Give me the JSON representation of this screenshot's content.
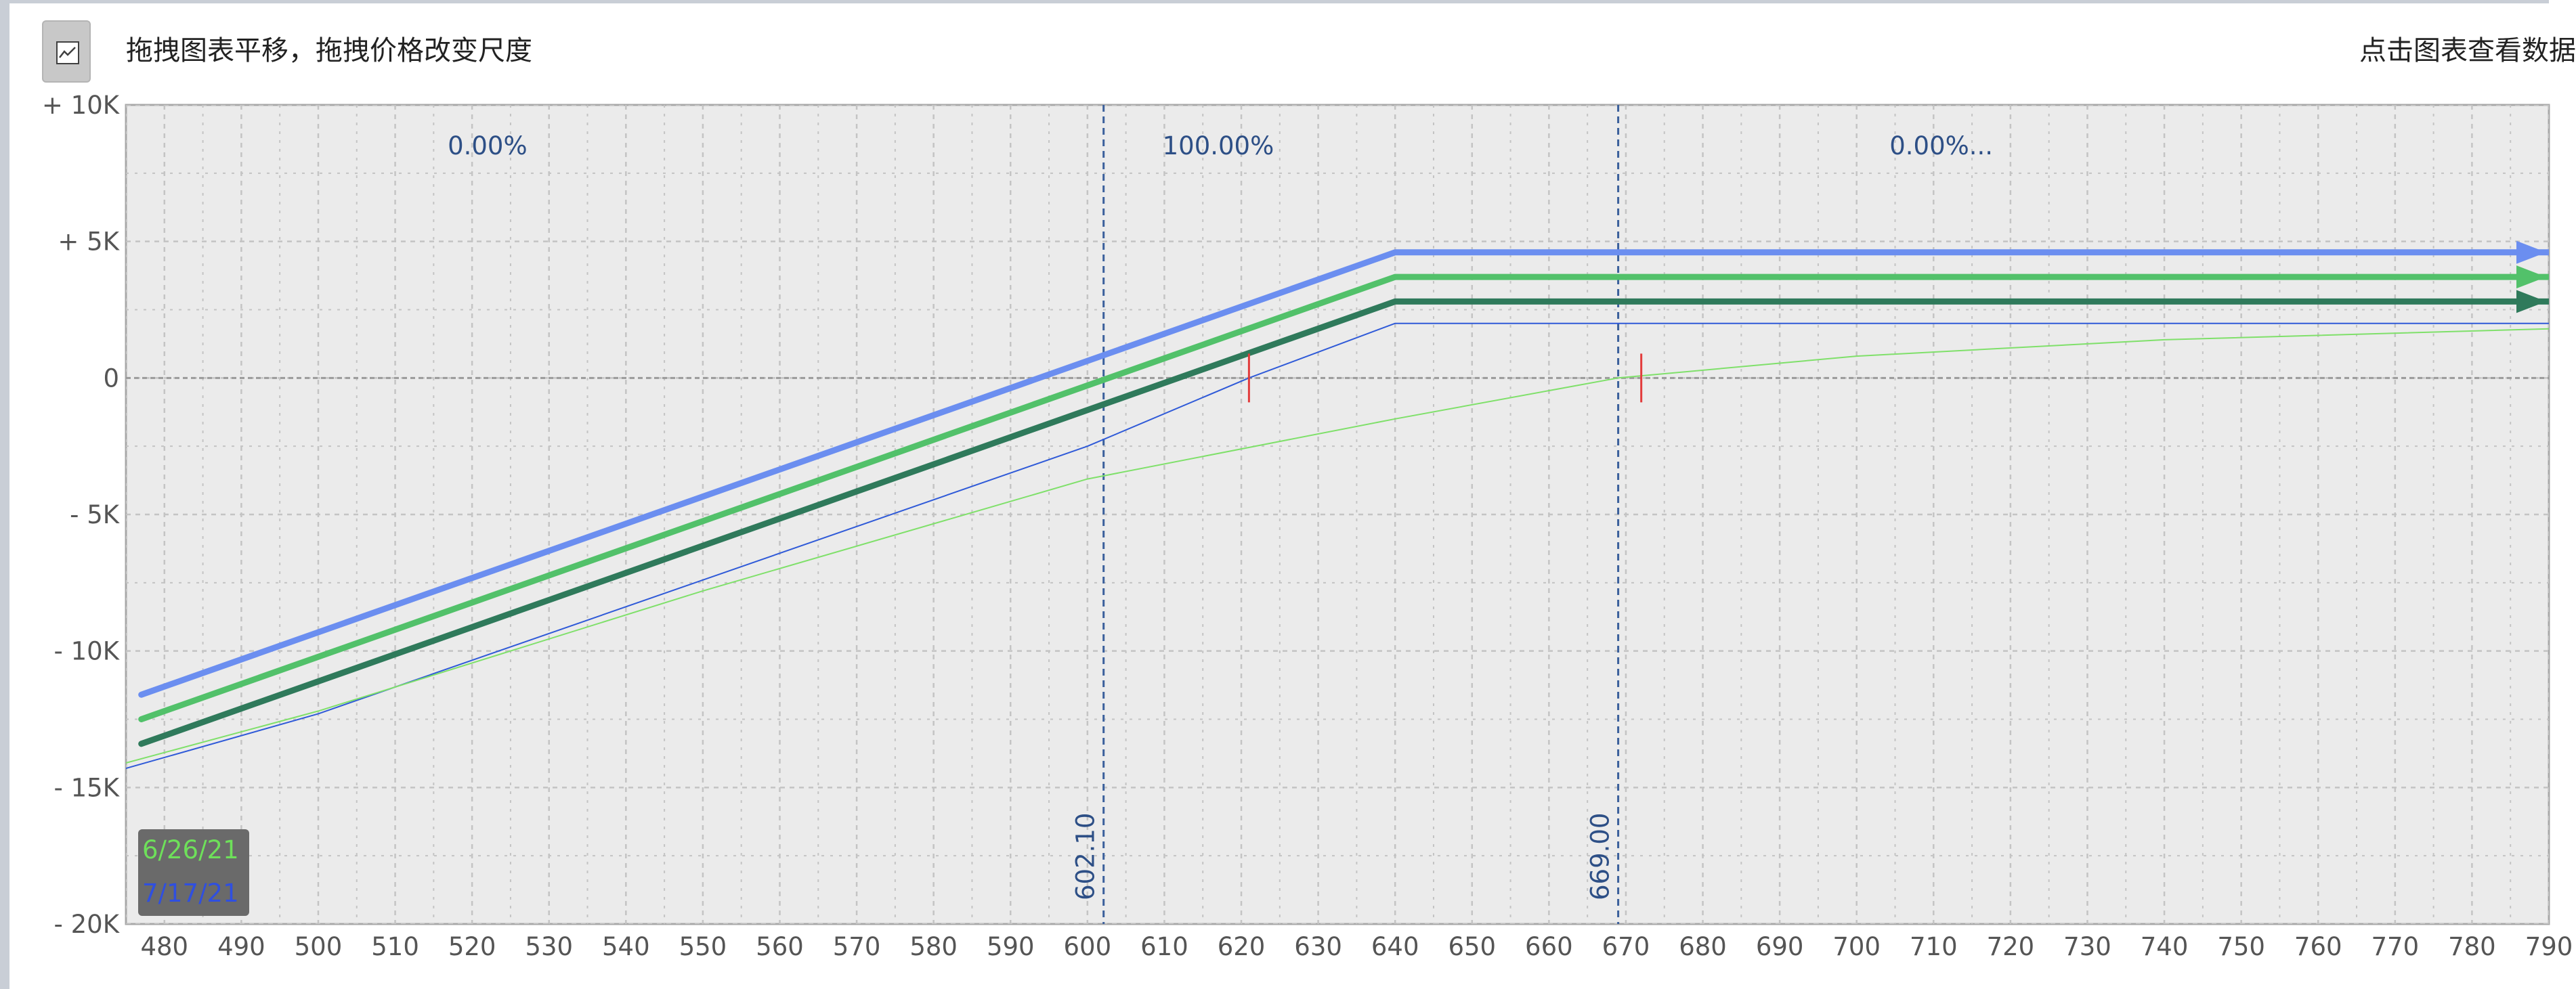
{
  "toolbar": {
    "chart_type_icon": "chart-image-icon",
    "hint": "拖拽图表平移，拖拽价格改变尺度",
    "action": "点击图表查看数据"
  },
  "colors": {
    "plot_background": "#ebebeb",
    "grid": "#c4c4c4",
    "vline": "#3a5f9b",
    "marker": "#e23b3b",
    "legend_background": "#6a6a6a"
  },
  "chart_data": {
    "type": "line",
    "xlim": [
      475,
      790
    ],
    "ylim": [
      -20000,
      10000
    ],
    "x_ticks": [
      480,
      490,
      500,
      510,
      520,
      530,
      540,
      550,
      560,
      570,
      580,
      590,
      600,
      610,
      620,
      630,
      640,
      650,
      660,
      670,
      680,
      690,
      700,
      710,
      720,
      730,
      740,
      750,
      760,
      770,
      780,
      790
    ],
    "y_ticks": [
      {
        "value": 10000,
        "label": "+ 10K"
      },
      {
        "value": 5000,
        "label": "+ 5K"
      },
      {
        "value": 0,
        "label": "0"
      },
      {
        "value": -5000,
        "label": "- 5K"
      },
      {
        "value": -10000,
        "label": "- 10K"
      },
      {
        "value": -15000,
        "label": "- 15K"
      },
      {
        "value": -20000,
        "label": "- 20K"
      }
    ],
    "grid": true,
    "probability_zones": [
      {
        "label": "0.00%",
        "x": 522
      },
      {
        "label": "100.00%",
        "x": 617
      },
      {
        "label": "0.00%...",
        "x": 711
      }
    ],
    "vertical_lines": [
      {
        "x": 602.1,
        "label": "602.10"
      },
      {
        "x": 669.0,
        "label": "669.00"
      }
    ],
    "markers": [
      {
        "x": 621,
        "y": 0
      },
      {
        "x": 672,
        "y": 0
      }
    ],
    "series": [
      {
        "color": "#6b8ef0",
        "width": 9,
        "arrow": true,
        "points": [
          [
            477,
            -11600
          ],
          [
            640,
            4600
          ],
          [
            790,
            4600
          ]
        ]
      },
      {
        "color": "#52c16a",
        "width": 9,
        "arrow": true,
        "points": [
          [
            477,
            -12500
          ],
          [
            640,
            3700
          ],
          [
            790,
            3700
          ]
        ]
      },
      {
        "color": "#2f7a5b",
        "width": 9,
        "arrow": true,
        "points": [
          [
            477,
            -13400
          ],
          [
            640,
            2800
          ],
          [
            790,
            2800
          ]
        ]
      },
      {
        "color": "#2f5ad8",
        "width": 2,
        "arrow": false,
        "points": [
          [
            475,
            -14300
          ],
          [
            500,
            -12300
          ],
          [
            550,
            -7400
          ],
          [
            600,
            -2500
          ],
          [
            621,
            0
          ],
          [
            640,
            2000
          ],
          [
            790,
            2000
          ]
        ]
      },
      {
        "color": "#7fe06a",
        "width": 2,
        "arrow": false,
        "points": [
          [
            475,
            -14100
          ],
          [
            500,
            -12200
          ],
          [
            550,
            -7800
          ],
          [
            600,
            -3700
          ],
          [
            640,
            -1500
          ],
          [
            669,
            0
          ],
          [
            700,
            800
          ],
          [
            740,
            1400
          ],
          [
            790,
            1800
          ]
        ]
      }
    ],
    "legend": {
      "position": "bottom-left",
      "entries": [
        {
          "label": "6/26/21",
          "color": "#6ee05a"
        },
        {
          "label": "7/17/21",
          "color": "#2f4fe0"
        }
      ]
    }
  }
}
